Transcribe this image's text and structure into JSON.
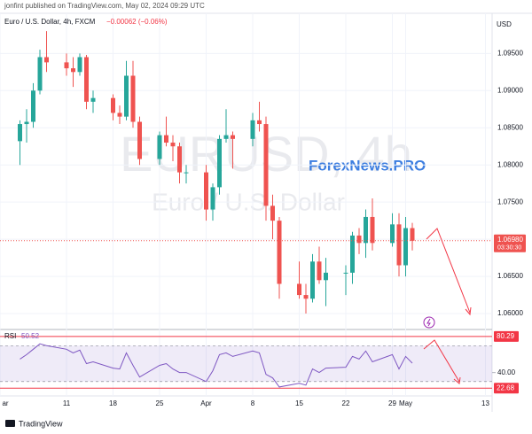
{
  "header": {
    "published": "jonfint published on TradingView.com, May 02, 2024 09:29 UTC",
    "symbol": "Euro / U.S. Dollar, 4h, FXCM",
    "change": "−0.00062 (−0.06%)",
    "currency": "USD"
  },
  "watermark": {
    "ticker": "EURUSD, 4h",
    "name": "Euro / U.S. Dollar",
    "brand": "ForexNews.PRO"
  },
  "footer": "TradingView",
  "chart_data": {
    "type": "candlestick",
    "x": [
      "03-04",
      "03-05",
      "03-06",
      "03-07",
      "03-08",
      "03-11",
      "03-12",
      "03-13",
      "03-14",
      "03-15",
      "03-18",
      "03-19",
      "03-20",
      "03-21",
      "03-22",
      "03-25",
      "03-26",
      "03-27",
      "03-28",
      "03-29",
      "04-01",
      "04-02",
      "04-03",
      "04-04",
      "04-05",
      "04-08",
      "04-09",
      "04-10",
      "04-11",
      "04-12",
      "04-15",
      "04-16",
      "04-17",
      "04-18",
      "04-19",
      "04-22",
      "04-23",
      "04-24",
      "04-25",
      "04-26",
      "04-29",
      "04-30",
      "05-01",
      "05-02"
    ],
    "open": [
      1.0832,
      1.0855,
      1.0858,
      1.09,
      1.0945,
      1.0938,
      1.093,
      1.0925,
      1.0945,
      1.0885,
      1.089,
      1.087,
      1.0865,
      1.092,
      1.0858,
      1.0808,
      1.084,
      1.083,
      1.0825,
      1.079,
      1.079,
      1.074,
      1.077,
      1.0835,
      1.084,
      1.0835,
      1.086,
      1.0855,
      1.0745,
      1.0725,
      1.064,
      1.0625,
      1.062,
      1.067,
      1.0645,
      1.0655,
      1.0655,
      1.0705,
      1.0695,
      1.073,
      1.0695,
      1.072,
      1.0665,
      1.0715
    ],
    "high": [
      1.086,
      1.0875,
      1.091,
      1.0955,
      1.098,
      1.095,
      1.0945,
      1.095,
      1.0948,
      1.09,
      1.0895,
      1.088,
      1.094,
      1.094,
      1.0865,
      1.0845,
      1.0865,
      1.084,
      1.083,
      1.08,
      1.08,
      1.0775,
      1.084,
      1.0875,
      1.0845,
      1.087,
      1.0885,
      1.0865,
      1.076,
      1.073,
      1.067,
      1.064,
      1.068,
      1.069,
      1.0675,
      1.0665,
      1.071,
      1.0715,
      1.074,
      1.0755,
      1.0735,
      1.0735,
      1.073,
      1.0722
    ],
    "low": [
      1.08,
      1.083,
      1.085,
      1.0895,
      1.0925,
      1.092,
      1.0905,
      1.092,
      1.0875,
      1.087,
      1.086,
      1.0855,
      1.086,
      1.085,
      1.08,
      1.08,
      1.0825,
      1.0805,
      1.0775,
      1.0775,
      1.0725,
      1.0725,
      1.076,
      1.083,
      1.0795,
      1.0825,
      1.0845,
      1.0725,
      1.07,
      1.062,
      1.062,
      1.06,
      1.0615,
      1.064,
      1.061,
      1.0625,
      1.064,
      1.068,
      1.0675,
      1.0685,
      1.069,
      1.065,
      1.065,
      1.0685
    ],
    "close": [
      1.0855,
      1.0858,
      1.09,
      1.0945,
      1.0938,
      1.093,
      1.0925,
      1.0945,
      1.0885,
      1.089,
      1.087,
      1.0865,
      1.092,
      1.0858,
      1.0808,
      1.084,
      1.083,
      1.0825,
      1.079,
      1.079,
      1.074,
      1.077,
      1.0835,
      1.084,
      1.0835,
      1.086,
      1.0855,
      1.0745,
      1.0725,
      1.064,
      1.0625,
      1.062,
      1.067,
      1.0645,
      1.0655,
      1.0655,
      1.0705,
      1.0695,
      1.073,
      1.0695,
      1.072,
      1.0665,
      1.0715,
      1.0698
    ],
    "up_color": "#26a69a",
    "down_color": "#ef5350",
    "xlim": [
      "03-01",
      "05-14"
    ],
    "xticks": [
      {
        "value": "03-01",
        "label": "ar"
      },
      {
        "value": "03-11",
        "label": "11"
      },
      {
        "value": "03-18",
        "label": "18"
      },
      {
        "value": "03-25",
        "label": "25"
      },
      {
        "value": "04-01",
        "label": "Apr"
      },
      {
        "value": "04-08",
        "label": "8"
      },
      {
        "value": "04-15",
        "label": "15"
      },
      {
        "value": "04-22",
        "label": "22"
      },
      {
        "value": "04-29",
        "label": "29"
      },
      {
        "value": "05-01",
        "label": "May"
      },
      {
        "value": "05-13",
        "label": "13"
      }
    ],
    "ylim": [
      1.0581,
      1.1004
    ],
    "yticks": [
      {
        "value": 1.06,
        "label": "1.06000"
      },
      {
        "value": 1.065,
        "label": "1.06500"
      },
      {
        "value": 1.07,
        "label": "1.07000"
      },
      {
        "value": 1.075,
        "label": "1.07500"
      },
      {
        "value": 1.08,
        "label": "1.08000"
      },
      {
        "value": 1.085,
        "label": "1.08500"
      },
      {
        "value": 1.09,
        "label": "1.09000"
      },
      {
        "value": 1.095,
        "label": "1.09500"
      }
    ],
    "last_price": {
      "value": 1.0698,
      "label": "1.06980"
    },
    "countdown": "03:30:30",
    "grid": true,
    "rsi": {
      "name": "RSI",
      "color": "#7e57c2",
      "values": [
        55,
        60,
        66,
        72,
        70,
        66,
        62,
        65,
        50,
        52,
        45,
        44,
        62,
        48,
        35,
        48,
        50,
        44,
        40,
        40,
        30,
        42,
        60,
        62,
        58,
        64,
        62,
        38,
        34,
        24,
        28,
        26,
        44,
        40,
        45,
        46,
        58,
        55,
        64,
        52,
        60,
        44,
        58,
        50.52
      ],
      "ylim": [
        14,
        88
      ],
      "yticks": [
        {
          "value": 40,
          "label": "40.00"
        }
      ],
      "band": [
        30,
        70
      ],
      "levels": [
        80.29,
        22.68
      ],
      "level_color": "#f23645"
    }
  }
}
